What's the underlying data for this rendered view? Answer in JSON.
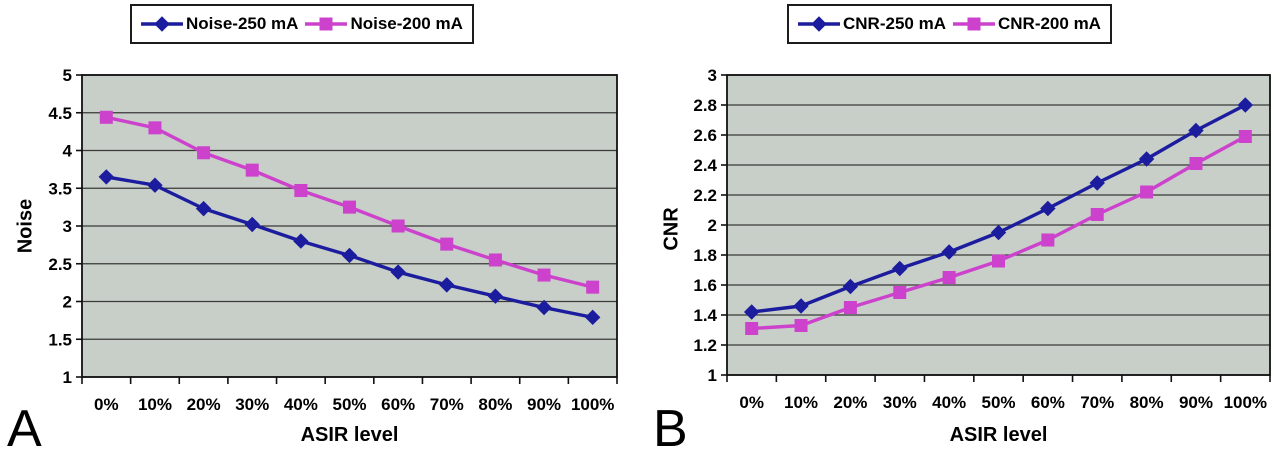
{
  "colors": {
    "figure_bg": "#ffffff",
    "plot_bg": "#c8cec8",
    "grid": "#3a3a3a",
    "axis": "#111111",
    "series_blue": "#1c1c9e",
    "series_magenta": "#cc42cc"
  },
  "panels": [
    {
      "panel_label": "A",
      "chart_index": 0
    },
    {
      "panel_label": "B",
      "chart_index": 1
    }
  ],
  "chart_data": [
    {
      "type": "line",
      "xlabel": "ASIR level",
      "ylabel": "Noise",
      "categories": [
        "0%",
        "10%",
        "20%",
        "30%",
        "40%",
        "50%",
        "60%",
        "70%",
        "80%",
        "90%",
        "100%"
      ],
      "ylim": [
        1,
        5
      ],
      "ytick_labels": [
        "5",
        "4.5",
        "4",
        "3.5",
        "3",
        "2.5",
        "2",
        "1.5",
        "1"
      ],
      "grid": true,
      "legend_position": "top",
      "series": [
        {
          "name": "Noise-250 mA",
          "marker": "diamond",
          "color": "#1c1c9e",
          "values": [
            3.65,
            3.54,
            3.23,
            3.02,
            2.8,
            2.61,
            2.39,
            2.22,
            2.07,
            1.92,
            1.79
          ]
        },
        {
          "name": "Noise-200 mA",
          "marker": "square",
          "color": "#cc42cc",
          "values": [
            4.44,
            4.3,
            3.97,
            3.74,
            3.47,
            3.25,
            3.0,
            2.76,
            2.55,
            2.35,
            2.19
          ]
        }
      ]
    },
    {
      "type": "line",
      "xlabel": "ASIR level",
      "ylabel": "CNR",
      "categories": [
        "0%",
        "10%",
        "20%",
        "30%",
        "40%",
        "50%",
        "60%",
        "70%",
        "80%",
        "90%",
        "100%"
      ],
      "ylim": [
        1,
        3
      ],
      "ytick_labels": [
        "3",
        "2.8",
        "2.6",
        "2.4",
        "2.2",
        "2",
        "1.8",
        "1.6",
        "1.4",
        "1.2",
        "1"
      ],
      "grid": true,
      "legend_position": "top",
      "series": [
        {
          "name": "CNR-250 mA",
          "marker": "diamond",
          "color": "#1c1c9e",
          "values": [
            1.42,
            1.46,
            1.59,
            1.71,
            1.82,
            1.95,
            2.11,
            2.28,
            2.44,
            2.63,
            2.8
          ]
        },
        {
          "name": "CNR-200 mA",
          "marker": "square",
          "color": "#cc42cc",
          "values": [
            1.31,
            1.33,
            1.45,
            1.55,
            1.65,
            1.76,
            1.9,
            2.07,
            2.22,
            2.41,
            2.59
          ]
        }
      ]
    }
  ]
}
